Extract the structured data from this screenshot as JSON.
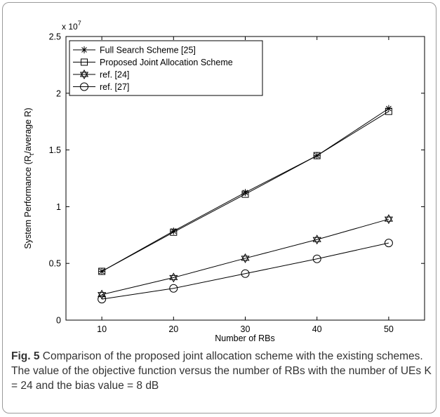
{
  "chart_data": {
    "type": "line",
    "xlabel": "Number of RBs",
    "ylabel": "System Performance (R",
    "ylabel_sub": "t",
    "ylabel_tail": "/average R)",
    "y_multiplier": "x 10",
    "y_multiplier_exp": "7",
    "x": [
      10,
      20,
      30,
      40,
      50
    ],
    "xlim": [
      5,
      55
    ],
    "ylim": [
      0,
      2.5
    ],
    "xticks": [
      "10",
      "20",
      "30",
      "40",
      "50"
    ],
    "yticks": [
      "0",
      "0.5",
      "1",
      "1.5",
      "2",
      "2.5"
    ],
    "ytick_values": [
      0,
      0.5,
      1,
      1.5,
      2,
      2.5
    ],
    "grid": false,
    "legend_position": "top-left",
    "series": [
      {
        "name": "Full Search Scheme [25]",
        "marker": "asterisk",
        "values": [
          0.43,
          0.785,
          1.125,
          1.45,
          1.865
        ]
      },
      {
        "name": "Proposed Joint Allocation Scheme",
        "marker": "square",
        "values": [
          0.43,
          0.775,
          1.11,
          1.45,
          1.84
        ]
      },
      {
        "name": "ref. [24]",
        "marker": "hexagram",
        "values": [
          0.225,
          0.375,
          0.545,
          0.71,
          0.89
        ]
      },
      {
        "name": "ref. [27]",
        "marker": "circle",
        "values": [
          0.185,
          0.28,
          0.41,
          0.54,
          0.68
        ]
      }
    ]
  },
  "caption": {
    "label": "Fig. 5",
    "text": "Comparison of the proposed joint allocation scheme with the existing schemes. The value of the objective function versus the number of RBs with the number of UEs K = 24 and the bias value = 8 dB"
  }
}
